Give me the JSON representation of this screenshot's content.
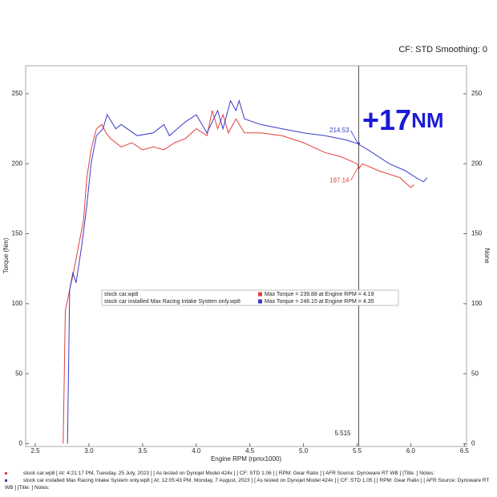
{
  "chart_data": {
    "type": "line",
    "header": "CF: STD Smoothing: 0",
    "xlabel": "Engine RPM (rpmx1000)",
    "ylabel": "Torque (Nm)",
    "y2label": "None",
    "xlim": [
      2.41,
      6.52
    ],
    "ylim": [
      -2,
      270
    ],
    "y2lim": [
      -2,
      270
    ],
    "xticks": [
      2.5,
      {
        "value": 3,
        "label": "3.0"
      },
      3.5,
      {
        "value": 4,
        "label": "4.0"
      },
      4.5,
      {
        "value": 5,
        "label": "5.0"
      },
      5.5,
      {
        "value": 6,
        "label": "6.0"
      },
      6.5
    ],
    "yticks": [
      0,
      50,
      100,
      150,
      200,
      250
    ],
    "y2ticks": [
      0,
      50,
      100,
      150,
      200,
      250
    ],
    "cursor": 5.515,
    "annotation": "+17",
    "annotation_unit": "NM",
    "series": [
      {
        "name": "stock car.wp8",
        "color": "#e0403a",
        "max_label": "Max Torque = 239.88 at Engine RPM = 4.19",
        "cursor_value": 197.14,
        "x": [
          2.76,
          2.78,
          2.82,
          2.85,
          2.9,
          2.95,
          2.98,
          3.02,
          3.07,
          3.12,
          3.16,
          3.2,
          3.3,
          3.4,
          3.5,
          3.6,
          3.7,
          3.8,
          3.9,
          4.0,
          4.1,
          4.15,
          4.2,
          4.25,
          4.3,
          4.37,
          4.45,
          4.6,
          4.8,
          5.0,
          5.2,
          5.35,
          5.5,
          5.52,
          5.55,
          5.7,
          5.9,
          6.0,
          6.03
        ],
        "values": [
          0,
          95,
          110,
          120,
          140,
          160,
          190,
          210,
          225,
          228,
          222,
          218,
          212,
          215,
          210,
          212,
          210,
          215,
          218,
          225,
          220,
          238,
          225,
          235,
          222,
          232,
          222,
          222,
          220,
          215,
          208,
          205,
          200,
          197,
          200,
          195,
          190,
          183,
          185
        ]
      },
      {
        "name": "stock car installed Max Racing Intake System only.wp8",
        "color": "#3a3ac8",
        "max_label": "Max Torque = 246.15 at Engine RPM = 4.35",
        "cursor_value": 214.53,
        "x": [
          2.8,
          2.82,
          2.85,
          2.88,
          2.93,
          2.98,
          3.02,
          3.07,
          3.13,
          3.17,
          3.25,
          3.3,
          3.45,
          3.6,
          3.7,
          3.75,
          3.9,
          4.0,
          4.1,
          4.2,
          4.25,
          4.32,
          4.37,
          4.4,
          4.45,
          4.6,
          4.8,
          5.0,
          5.2,
          5.4,
          5.5,
          5.6,
          5.8,
          5.95,
          6.05,
          6.12,
          6.15
        ],
        "values": [
          0,
          110,
          122,
          115,
          140,
          170,
          200,
          220,
          225,
          235,
          225,
          228,
          220,
          222,
          228,
          220,
          230,
          235,
          222,
          238,
          225,
          245,
          238,
          245,
          232,
          228,
          225,
          222,
          220,
          217,
          214.53,
          210,
          200,
          195,
          190,
          187,
          190
        ]
      }
    ],
    "footer": [
      "stock car.wp8 [ At: 4:21:17 PM, Tuesday, 25 July, 2023 ] [ As tested on Dynojet Model 424x ] [ CF: STD 1.06 ] [ RPM: Gear Ratio ] [ AFR Source: Dynoware RT WB ] [Title: ] Notes:",
      "stock car installed Max Racing Intake System only.wp8 [ At: 12:05:43 PM, Monday, 7 August, 2023 ] [ As tested on Dynojet Model 424x ] [ CF: STD 1.05 ] [ RPM: Gear Ratio ] [ AFR Source: Dynoware RT WB ] [Title: ] Notes:"
    ]
  }
}
